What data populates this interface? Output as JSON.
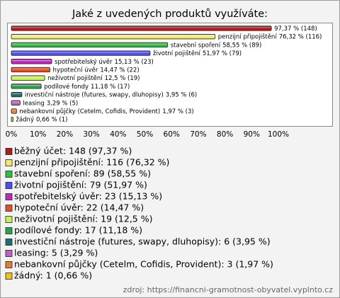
{
  "chart_data": {
    "type": "bar",
    "orientation": "horizontal",
    "title": "Jaké z uvedených produktů využíváte:",
    "categories": [
      null,
      "penzijní připojištění",
      "stavební spoření",
      "životní pojištění",
      "spotřebitelský úvěr",
      "hypoteční úvěr",
      "neživotní pojištění",
      "podílové fondy",
      "investiční nástroje (futures, swapy, dluhopisy)",
      "leasing",
      "nebankovní půjčky (Cetelm, Cofidis, Provident)",
      "žádný"
    ],
    "values": [
      97.37,
      76.32,
      58.55,
      51.97,
      15.13,
      14.47,
      12.5,
      11.18,
      3.95,
      3.29,
      1.97,
      0.66
    ],
    "value_labels": [
      "97,37 % (148)",
      "76,32 % (116)",
      "58,55 % (89)",
      "51,97 % (79)",
      "15,13 % (23)",
      "14,47 % (22)",
      "12,5 % (19)",
      "11,18 % (17)",
      "3,95 % (6)",
      "3,29 % (5)",
      "1,97 % (3)",
      "0,66 % (1)"
    ],
    "colors": [
      "#b01c1c",
      "#f3ea6a",
      "#2cc23e",
      "#4e4ef0",
      "#b82cb8",
      "#e0502c",
      "#c8f05c",
      "#2ea050",
      "#1e6e70",
      "#c060c0",
      "#e08030",
      "#f0c020"
    ],
    "legend_labels": [
      "běžný účet: 148 (97,37 %)",
      "penzijní připojištění: 116 (76,32 %)",
      "stavební spoření: 89 (58,55 %)",
      "životní pojištění: 79 (51,97 %)",
      "spotřebitelský úvěr: 23 (15,13 %)",
      "hypoteční úvěr: 22 (14,47 %)",
      "neživotní pojištění: 19 (12,5 %)",
      "podílové fondy: 17 (11,18 %)",
      "investiční nástroje (futures, swapy, dluhopisy): 6 (3,95 %)",
      "leasing: 5 (3,29 %)",
      "nebankovní půjčky (Cetelm, Cofidis, Provident): 3 (1,97 %)",
      "žádný: 1 (0,66 %)"
    ],
    "xlim": [
      0,
      100
    ],
    "xticks": [
      {
        "value": 0,
        "label": "0%"
      },
      {
        "value": 10,
        "label": "10%"
      },
      {
        "value": 20,
        "label": "20%"
      },
      {
        "value": 30,
        "label": "30%"
      },
      {
        "value": 40,
        "label": "40%"
      },
      {
        "value": 50,
        "label": "50%"
      },
      {
        "value": 60,
        "label": "60%"
      },
      {
        "value": 70,
        "label": "70%"
      },
      {
        "value": 80,
        "label": "80%"
      },
      {
        "value": 90,
        "label": "90%"
      },
      {
        "value": 100,
        "label": "100%"
      }
    ],
    "source": "zdroj: https://financni-gramotnost-obyvatel.vyplnto.cz"
  }
}
